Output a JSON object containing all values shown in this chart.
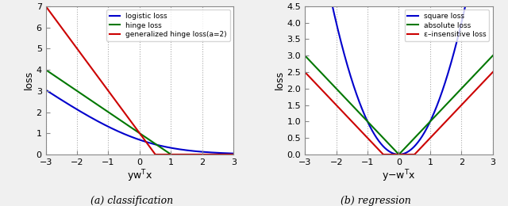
{
  "xlim": [
    -3,
    3
  ],
  "xticks": [
    -3,
    -2,
    -1,
    0,
    1,
    2,
    3
  ],
  "grid_color": "#888888",
  "plot_bg": "#ffffff",
  "fig_bg": "#f0f0f0",
  "line_width": 1.5,
  "left": {
    "ylim": [
      0,
      7
    ],
    "yticks": [
      0,
      1,
      2,
      3,
      4,
      5,
      6,
      7
    ],
    "ylabel": "loss",
    "xlabel": "yw$^\\mathsf{T}$x",
    "caption": "(a) classification",
    "legend": [
      "logistic loss",
      "hinge loss",
      "generalized hinge loss(a=2)"
    ],
    "colors": [
      "#0000cc",
      "#007700",
      "#cc0000"
    ]
  },
  "right": {
    "ylim": [
      0,
      4.5
    ],
    "yticks": [
      0,
      0.5,
      1.0,
      1.5,
      2.0,
      2.5,
      3.0,
      3.5,
      4.0,
      4.5
    ],
    "ylabel": "loss",
    "xlabel": "y$-$w$^\\mathsf{T}$x",
    "caption": "(b) regression",
    "legend": [
      "square loss",
      "absolute loss",
      "ε–insensitive loss"
    ],
    "colors": [
      "#0000cc",
      "#007700",
      "#cc0000"
    ]
  }
}
